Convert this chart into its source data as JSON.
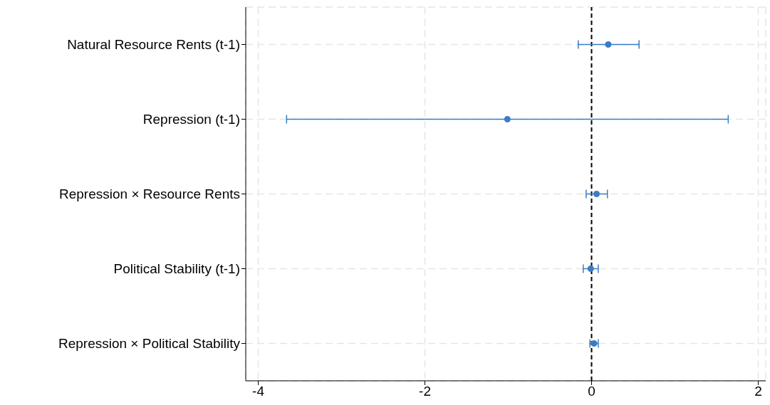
{
  "chart_data": {
    "type": "scatter",
    "orientation": "horizontal",
    "categories": [
      "Natural Resource Rents (t-1)",
      "Repression (t-1)",
      "Repression × Resource Rents",
      "Political Stability (t-1)",
      "Repression × Political Stability"
    ],
    "values": [
      0.2,
      -1.01,
      0.06,
      -0.01,
      0.03
    ],
    "errors": [
      [
        -0.16,
        0.57
      ],
      [
        -3.66,
        1.64
      ],
      [
        -0.065,
        0.19
      ],
      [
        -0.1,
        0.08
      ],
      [
        -0.02,
        0.08
      ]
    ],
    "color": "#3a7dc4",
    "marker": "circle",
    "xlim": [
      -4.15,
      2.09
    ],
    "xticks": [
      -4,
      -2,
      0,
      2
    ],
    "grid": true,
    "ref_lines": [
      {
        "axis": "x",
        "value": 0,
        "color": "#000000",
        "line_style": "dashed"
      }
    ]
  }
}
